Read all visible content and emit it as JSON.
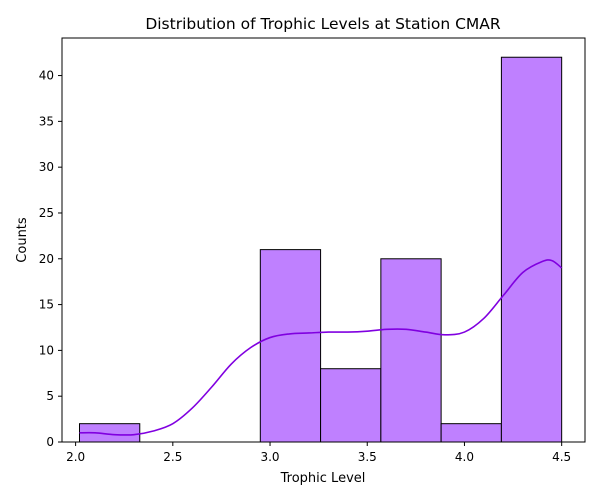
{
  "chart_data": {
    "type": "bar",
    "title": "Distribution of Trophic Levels at Station CMAR",
    "xlabel": "Trophic Level",
    "ylabel": "Counts",
    "xlim": [
      1.93,
      4.62
    ],
    "ylim": [
      0,
      44.1
    ],
    "xticks": [
      "2.0",
      "2.5",
      "3.0",
      "3.5",
      "4.0",
      "4.5"
    ],
    "xtick_values": [
      2.0,
      2.5,
      3.0,
      3.5,
      4.0,
      4.5
    ],
    "yticks": [
      "0",
      "5",
      "10",
      "15",
      "20",
      "25",
      "30",
      "35",
      "40"
    ],
    "ytick_values": [
      0,
      5,
      10,
      15,
      20,
      25,
      30,
      35,
      40
    ],
    "bins": [
      {
        "x0": 2.02,
        "x1": 2.33,
        "count": 2
      },
      {
        "x0": 2.33,
        "x1": 2.64,
        "count": 0
      },
      {
        "x0": 2.64,
        "x1": 2.95,
        "count": 0
      },
      {
        "x0": 2.95,
        "x1": 3.26,
        "count": 21
      },
      {
        "x0": 3.26,
        "x1": 3.57,
        "count": 8
      },
      {
        "x0": 3.57,
        "x1": 3.88,
        "count": 20
      },
      {
        "x0": 3.88,
        "x1": 4.19,
        "count": 2
      },
      {
        "x0": 4.19,
        "x1": 4.5,
        "count": 42
      }
    ],
    "kde": {
      "x": [
        2.02,
        2.1,
        2.2,
        2.3,
        2.4,
        2.5,
        2.6,
        2.7,
        2.8,
        2.9,
        3.0,
        3.1,
        3.2,
        3.3,
        3.4,
        3.5,
        3.6,
        3.7,
        3.8,
        3.9,
        4.0,
        4.1,
        4.2,
        4.3,
        4.4,
        4.45,
        4.5
      ],
      "y": [
        1.0,
        1.0,
        0.8,
        0.8,
        1.2,
        2.0,
        3.7,
        6.0,
        8.5,
        10.3,
        11.4,
        11.8,
        11.9,
        12.0,
        12.0,
        12.1,
        12.3,
        12.3,
        12.0,
        11.7,
        12.0,
        13.5,
        16.0,
        18.5,
        19.7,
        19.8,
        19.0
      ]
    },
    "colors": {
      "bar_fill": "#bf80ff",
      "bar_edge": "#000000",
      "kde_line": "#8000e0"
    },
    "grid": false,
    "legend": "none"
  }
}
